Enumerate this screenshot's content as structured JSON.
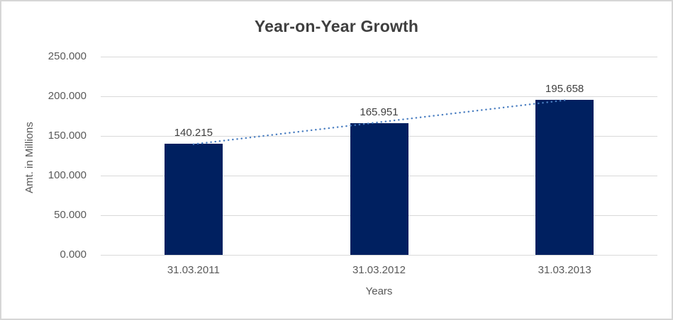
{
  "chart_data": {
    "type": "bar",
    "title": "Year-on-Year Growth",
    "xlabel": "Years",
    "ylabel": "Amt. in Millions",
    "categories": [
      "31.03.2011",
      "31.03.2012",
      "31.03.2013"
    ],
    "values": [
      140.215,
      165.951,
      195.658
    ],
    "value_labels": [
      "140.215",
      "165.951",
      "195.658"
    ],
    "yticks": [
      {
        "value": 0,
        "label": "0.000"
      },
      {
        "value": 50,
        "label": "50.000"
      },
      {
        "value": 100,
        "label": "100.000"
      },
      {
        "value": 150,
        "label": "150.000"
      },
      {
        "value": 200,
        "label": "200.000"
      },
      {
        "value": 250,
        "label": "250.000"
      }
    ],
    "ylim": [
      0,
      250
    ],
    "grid": true,
    "legend": "none",
    "trendline": {
      "type": "linear",
      "style": "dotted"
    },
    "colors": {
      "bar": "#002060",
      "trendline": "#4a7ec1",
      "gridline": "#d9d9d9",
      "title_text": "#3f3f3f",
      "axis_text": "#595959",
      "data_label_text": "#404040",
      "border": "#d6d6d6"
    }
  }
}
